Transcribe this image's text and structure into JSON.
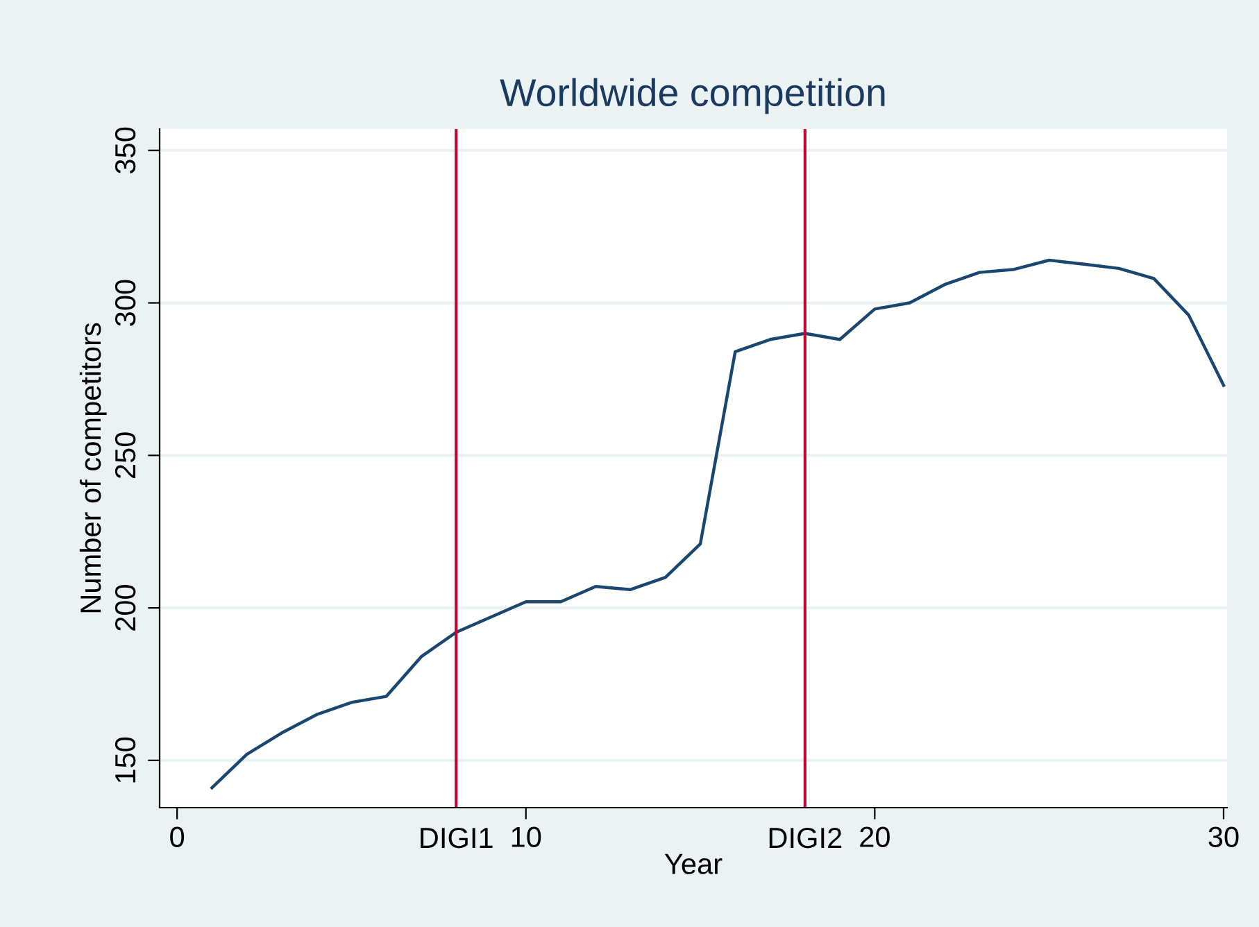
{
  "chart_data": {
    "type": "line",
    "title": "Worldwide competition",
    "xlabel": "Year",
    "ylabel": "Number of competitors",
    "x": [
      1,
      2,
      3,
      4,
      5,
      6,
      7,
      8,
      9,
      10,
      11,
      12,
      13,
      14,
      15,
      16,
      17,
      18,
      19,
      20,
      21,
      22,
      23,
      24,
      25,
      26,
      27,
      28,
      29,
      30
    ],
    "series": [
      {
        "color": "#1a476f",
        "values": [
          141,
          152,
          159,
          165,
          169,
          171,
          184,
          192,
          197,
          202,
          202,
          207,
          206,
          210,
          221,
          284,
          288,
          290,
          288,
          298,
          300,
          306,
          310,
          311,
          314,
          312.7,
          311.3,
          308,
          296,
          273
        ]
      }
    ],
    "xlim": [
      -0.5,
      30.1
    ],
    "ylim": [
      134.5,
      357
    ],
    "xticks": [
      0,
      10,
      20,
      30
    ],
    "yticks": [
      150,
      200,
      250,
      300,
      350
    ],
    "ref_lines": [
      {
        "axis": "x",
        "value": 8,
        "label": "DIGI1",
        "color": "#c10534"
      },
      {
        "axis": "x",
        "value": 18,
        "label": "DIGI2",
        "color": "#c10534"
      }
    ],
    "grid": "y",
    "legend": false,
    "marker": "none",
    "line_style": "solid"
  }
}
